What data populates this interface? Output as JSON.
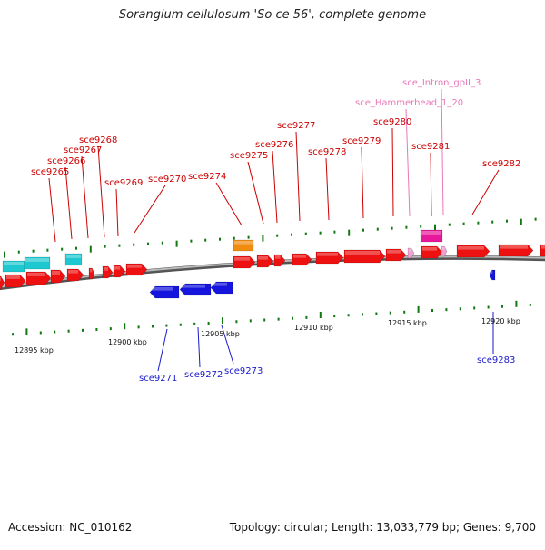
{
  "title": "Sorangium cellulosum 'So ce 56', complete genome",
  "footer": {
    "accession_label": "Accession: NC_010162",
    "stats": "Topology: circular; Length: 13,033,779 bp; Genes: 9,700"
  },
  "colors": {
    "forward_gene": "#ee1111",
    "reverse_gene": "#1515dd",
    "rna": "#1ec8d0",
    "orange_feature": "#f08c10",
    "magenta_feature": "#e8189a",
    "pink_feature": "#f0a0d0",
    "forward_label": "#cc0000",
    "reverse_label": "#1a1acc",
    "ncrna_label": "#e878b8",
    "backbone": "#777777",
    "ticks": "#117711"
  },
  "scale_labels": [
    "12895 kbp",
    "12900 kbp",
    "12905 kbp",
    "12910 kbp",
    "12915 kbp",
    "12920 kbp"
  ],
  "forward_labels": [
    "sce9265",
    "sce9266",
    "sce9267",
    "sce9268",
    "sce9269",
    "sce9270",
    "sce9274",
    "sce9275",
    "sce9276",
    "sce9277",
    "sce9278",
    "sce9279",
    "sce9280",
    "sce9281",
    "sce9282"
  ],
  "ncrna_labels": [
    "sce_Hammerhead_1_20",
    "sce_Intron_gpII_3"
  ],
  "reverse_labels": [
    "sce9271",
    "sce9272",
    "sce9273",
    "sce9283"
  ]
}
